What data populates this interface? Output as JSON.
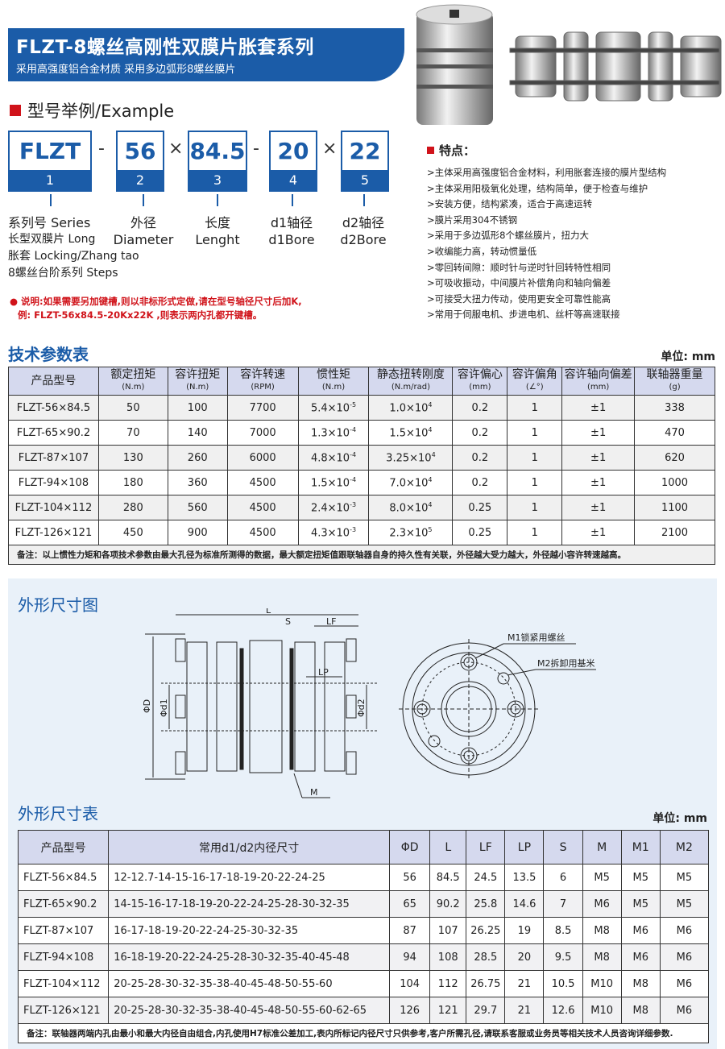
{
  "header": {
    "title": "FLZT-8螺丝高刚性双膜片胀套系列",
    "subtitle": "采用高强度铝合金材质 采用多边弧形8螺丝膜片"
  },
  "example": {
    "heading": "型号举例/Example",
    "parts": [
      {
        "value": "FLZT",
        "index": "1"
      },
      {
        "value": "56",
        "index": "2"
      },
      {
        "value": "84.5",
        "index": "3"
      },
      {
        "value": "20",
        "index": "4"
      },
      {
        "value": "22",
        "index": "5"
      }
    ],
    "separators": [
      "-",
      "×",
      "-",
      "×"
    ],
    "labels": [
      [
        "系列号 Series",
        "长型双膜片 Long",
        "胀套 Locking/Zhang tao",
        "8螺丝台阶系列 Steps"
      ],
      [
        "外径",
        "Diameter"
      ],
      [
        "长度",
        "Lenght"
      ],
      [
        "d1轴径",
        "d1Bore"
      ],
      [
        "d2轴径",
        "d2Bore"
      ]
    ],
    "note": [
      "● 说明:如果需要另加键槽,则以非标形式定做,请在型号轴径尺寸后加K,",
      "例: FLZT-56x84.5-20Kx22K ,则表示两内孔都开键槽。"
    ]
  },
  "features": {
    "heading": "特点：",
    "items": [
      ">主体采用高强度铝合金材料，利用胀套连接的膜片型结构",
      ">主体采用阳极氧化处理，结构简单，便于检查与维护",
      ">安装方便，结构紧凑，适合于高速运转",
      ">膜片采用304不锈钢",
      ">采用于多边弧形8个螺丝膜片，扭力大",
      ">收编能力高，转动惯量低",
      ">零回转间隙：顺时针与逆时针回转特性相同",
      ">可吸收振动，中间膜片补偿角向和轴向偏差",
      ">可接受大扭力传动，使用更安全可靠性能高",
      ">常用于伺服电机、步进电机、丝杆等高速联接"
    ]
  },
  "tech_table": {
    "title": "技术参数表",
    "unit": "单位: mm",
    "headers": [
      [
        "产品型号",
        ""
      ],
      [
        "额定扭矩",
        "(N.m)"
      ],
      [
        "容许扭矩",
        "(N.m)"
      ],
      [
        "容许转速",
        "(RPM)"
      ],
      [
        "惯性矩",
        "(N.m)"
      ],
      [
        "静态扭转刚度",
        "(N.m/rad)"
      ],
      [
        "容许偏心",
        "(mm)"
      ],
      [
        "容许偏角",
        "(∠°)"
      ],
      [
        "容许轴向偏差",
        "(mm)"
      ],
      [
        "联轴器重量",
        "(g)"
      ]
    ],
    "rows": [
      [
        "FLZT-56×84.5",
        "50",
        "100",
        "7700",
        "5.4×10",
        "-5",
        "1.0×10",
        "4",
        "0.2",
        "1",
        "±1",
        "338"
      ],
      [
        "FLZT-65×90.2",
        "70",
        "140",
        "7000",
        "1.3×10",
        "-4",
        "1.5×10",
        "4",
        "0.2",
        "1",
        "±1",
        "470"
      ],
      [
        "FLZT-87×107",
        "130",
        "260",
        "6000",
        "4.8×10",
        "-4",
        "3.25×10",
        "4",
        "0.2",
        "1",
        "±1",
        "620"
      ],
      [
        "FLZT-94×108",
        "180",
        "360",
        "4500",
        "1.5×10",
        "-4",
        "7.0×10",
        "4",
        "0.2",
        "1",
        "±1",
        "1000"
      ],
      [
        "FLZT-104×112",
        "280",
        "560",
        "4500",
        "2.4×10",
        "-3",
        "8.0×10",
        "4",
        "0.25",
        "1",
        "±1",
        "1100"
      ],
      [
        "FLZT-126×121",
        "450",
        "900",
        "4500",
        "4.3×10",
        "-3",
        "2.3×10",
        "5",
        "0.25",
        "1",
        "±1",
        "2100"
      ]
    ],
    "note": "备注：以上惯性力矩和各项技术参数由最大孔径为标准所测得的数据，最大额定扭矩值跟联轴器自身的持久性有关联，外径越大受力越大，外径越小容许转速越高。"
  },
  "drawing": {
    "title": "外形尺寸图",
    "labels": {
      "L": "L",
      "S": "S",
      "LF": "LF",
      "LP": "LP",
      "D": "ΦD",
      "d1": "Φd1",
      "d2": "Φd2",
      "M": "M",
      "M1": "M1锁紧用螺丝",
      "M2": "M2拆卸用基米"
    }
  },
  "dim_table": {
    "title": "外形尺寸表",
    "unit": "单位: mm",
    "headers": [
      "产品型号",
      "常用d1/d2内径尺寸",
      "ΦD",
      "L",
      "LF",
      "LP",
      "S",
      "M",
      "M1",
      "M2"
    ],
    "rows": [
      [
        "FLZT-56×84.5",
        "12-12.7-14-15-16-17-18-19-20-22-24-25",
        "56",
        "84.5",
        "24.5",
        "13.5",
        "6",
        "M5",
        "M5",
        "M5"
      ],
      [
        "FLZT-65×90.2",
        "14-15-16-17-18-19-20-22-24-25-28-30-32-35",
        "65",
        "90.2",
        "25.8",
        "14.6",
        "7",
        "M6",
        "M5",
        "M5"
      ],
      [
        "FLZT-87×107",
        "16-17-18-19-20-22-24-25-30-32-35",
        "87",
        "107",
        "26.25",
        "19",
        "8.5",
        "M8",
        "M6",
        "M6"
      ],
      [
        "FLZT-94×108",
        "16-18-19-20-22-24-25-28-30-32-35-40-45-48",
        "94",
        "108",
        "28.5",
        "20",
        "9.5",
        "M8",
        "M6",
        "M6"
      ],
      [
        "FLZT-104×112",
        "20-25-28-30-32-35-38-40-45-48-50-55-60",
        "104",
        "112",
        "26.75",
        "21",
        "10.5",
        "M10",
        "M8",
        "M6"
      ],
      [
        "FLZT-126×121",
        "20-25-28-30-32-35-38-40-45-48-50-55-60-62-65",
        "126",
        "121",
        "29.7",
        "21",
        "12.6",
        "M10",
        "M8",
        "M6"
      ]
    ],
    "note": "备注：联轴器两端内孔由最小和最大内径自由组合,内孔使用H7标准公差加工,表内所标记内径尺寸只供参考,客户所需孔径,请联系客服或业务员等相关技术人员咨询详细参数."
  },
  "colors": {
    "brand_blue": "#1b5ca8",
    "accent_red": "#d0131a",
    "header_bg": "#d5d9ee"
  }
}
